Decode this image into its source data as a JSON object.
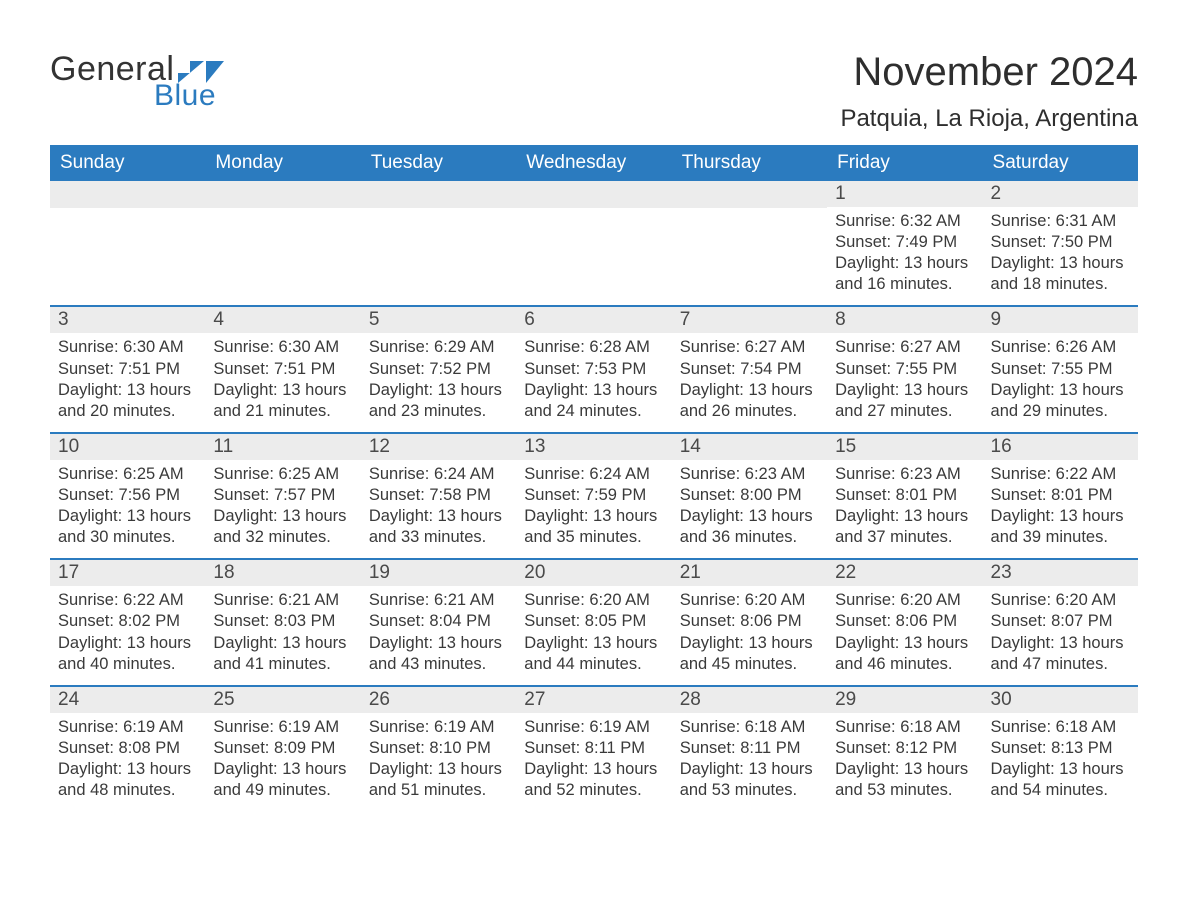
{
  "logo": {
    "word1": "General",
    "word2": "Blue"
  },
  "title": "November 2024",
  "location": "Patquia, La Rioja, Argentina",
  "colors": {
    "header_bg": "#2b7bbf",
    "header_text": "#ffffff",
    "daynum_bg": "#ececec",
    "border_top": "#2b7bbf",
    "body_text": "#3a3a3a",
    "title_text": "#2e2e2e"
  },
  "weekdays": [
    "Sunday",
    "Monday",
    "Tuesday",
    "Wednesday",
    "Thursday",
    "Friday",
    "Saturday"
  ],
  "weeks": [
    [
      null,
      null,
      null,
      null,
      null,
      {
        "n": "1",
        "sunrise": "Sunrise: 6:32 AM",
        "sunset": "Sunset: 7:49 PM",
        "day1": "Daylight: 13 hours",
        "day2": "and 16 minutes."
      },
      {
        "n": "2",
        "sunrise": "Sunrise: 6:31 AM",
        "sunset": "Sunset: 7:50 PM",
        "day1": "Daylight: 13 hours",
        "day2": "and 18 minutes."
      }
    ],
    [
      {
        "n": "3",
        "sunrise": "Sunrise: 6:30 AM",
        "sunset": "Sunset: 7:51 PM",
        "day1": "Daylight: 13 hours",
        "day2": "and 20 minutes."
      },
      {
        "n": "4",
        "sunrise": "Sunrise: 6:30 AM",
        "sunset": "Sunset: 7:51 PM",
        "day1": "Daylight: 13 hours",
        "day2": "and 21 minutes."
      },
      {
        "n": "5",
        "sunrise": "Sunrise: 6:29 AM",
        "sunset": "Sunset: 7:52 PM",
        "day1": "Daylight: 13 hours",
        "day2": "and 23 minutes."
      },
      {
        "n": "6",
        "sunrise": "Sunrise: 6:28 AM",
        "sunset": "Sunset: 7:53 PM",
        "day1": "Daylight: 13 hours",
        "day2": "and 24 minutes."
      },
      {
        "n": "7",
        "sunrise": "Sunrise: 6:27 AM",
        "sunset": "Sunset: 7:54 PM",
        "day1": "Daylight: 13 hours",
        "day2": "and 26 minutes."
      },
      {
        "n": "8",
        "sunrise": "Sunrise: 6:27 AM",
        "sunset": "Sunset: 7:55 PM",
        "day1": "Daylight: 13 hours",
        "day2": "and 27 minutes."
      },
      {
        "n": "9",
        "sunrise": "Sunrise: 6:26 AM",
        "sunset": "Sunset: 7:55 PM",
        "day1": "Daylight: 13 hours",
        "day2": "and 29 minutes."
      }
    ],
    [
      {
        "n": "10",
        "sunrise": "Sunrise: 6:25 AM",
        "sunset": "Sunset: 7:56 PM",
        "day1": "Daylight: 13 hours",
        "day2": "and 30 minutes."
      },
      {
        "n": "11",
        "sunrise": "Sunrise: 6:25 AM",
        "sunset": "Sunset: 7:57 PM",
        "day1": "Daylight: 13 hours",
        "day2": "and 32 minutes."
      },
      {
        "n": "12",
        "sunrise": "Sunrise: 6:24 AM",
        "sunset": "Sunset: 7:58 PM",
        "day1": "Daylight: 13 hours",
        "day2": "and 33 minutes."
      },
      {
        "n": "13",
        "sunrise": "Sunrise: 6:24 AM",
        "sunset": "Sunset: 7:59 PM",
        "day1": "Daylight: 13 hours",
        "day2": "and 35 minutes."
      },
      {
        "n": "14",
        "sunrise": "Sunrise: 6:23 AM",
        "sunset": "Sunset: 8:00 PM",
        "day1": "Daylight: 13 hours",
        "day2": "and 36 minutes."
      },
      {
        "n": "15",
        "sunrise": "Sunrise: 6:23 AM",
        "sunset": "Sunset: 8:01 PM",
        "day1": "Daylight: 13 hours",
        "day2": "and 37 minutes."
      },
      {
        "n": "16",
        "sunrise": "Sunrise: 6:22 AM",
        "sunset": "Sunset: 8:01 PM",
        "day1": "Daylight: 13 hours",
        "day2": "and 39 minutes."
      }
    ],
    [
      {
        "n": "17",
        "sunrise": "Sunrise: 6:22 AM",
        "sunset": "Sunset: 8:02 PM",
        "day1": "Daylight: 13 hours",
        "day2": "and 40 minutes."
      },
      {
        "n": "18",
        "sunrise": "Sunrise: 6:21 AM",
        "sunset": "Sunset: 8:03 PM",
        "day1": "Daylight: 13 hours",
        "day2": "and 41 minutes."
      },
      {
        "n": "19",
        "sunrise": "Sunrise: 6:21 AM",
        "sunset": "Sunset: 8:04 PM",
        "day1": "Daylight: 13 hours",
        "day2": "and 43 minutes."
      },
      {
        "n": "20",
        "sunrise": "Sunrise: 6:20 AM",
        "sunset": "Sunset: 8:05 PM",
        "day1": "Daylight: 13 hours",
        "day2": "and 44 minutes."
      },
      {
        "n": "21",
        "sunrise": "Sunrise: 6:20 AM",
        "sunset": "Sunset: 8:06 PM",
        "day1": "Daylight: 13 hours",
        "day2": "and 45 minutes."
      },
      {
        "n": "22",
        "sunrise": "Sunrise: 6:20 AM",
        "sunset": "Sunset: 8:06 PM",
        "day1": "Daylight: 13 hours",
        "day2": "and 46 minutes."
      },
      {
        "n": "23",
        "sunrise": "Sunrise: 6:20 AM",
        "sunset": "Sunset: 8:07 PM",
        "day1": "Daylight: 13 hours",
        "day2": "and 47 minutes."
      }
    ],
    [
      {
        "n": "24",
        "sunrise": "Sunrise: 6:19 AM",
        "sunset": "Sunset: 8:08 PM",
        "day1": "Daylight: 13 hours",
        "day2": "and 48 minutes."
      },
      {
        "n": "25",
        "sunrise": "Sunrise: 6:19 AM",
        "sunset": "Sunset: 8:09 PM",
        "day1": "Daylight: 13 hours",
        "day2": "and 49 minutes."
      },
      {
        "n": "26",
        "sunrise": "Sunrise: 6:19 AM",
        "sunset": "Sunset: 8:10 PM",
        "day1": "Daylight: 13 hours",
        "day2": "and 51 minutes."
      },
      {
        "n": "27",
        "sunrise": "Sunrise: 6:19 AM",
        "sunset": "Sunset: 8:11 PM",
        "day1": "Daylight: 13 hours",
        "day2": "and 52 minutes."
      },
      {
        "n": "28",
        "sunrise": "Sunrise: 6:18 AM",
        "sunset": "Sunset: 8:11 PM",
        "day1": "Daylight: 13 hours",
        "day2": "and 53 minutes."
      },
      {
        "n": "29",
        "sunrise": "Sunrise: 6:18 AM",
        "sunset": "Sunset: 8:12 PM",
        "day1": "Daylight: 13 hours",
        "day2": "and 53 minutes."
      },
      {
        "n": "30",
        "sunrise": "Sunrise: 6:18 AM",
        "sunset": "Sunset: 8:13 PM",
        "day1": "Daylight: 13 hours",
        "day2": "and 54 minutes."
      }
    ]
  ]
}
